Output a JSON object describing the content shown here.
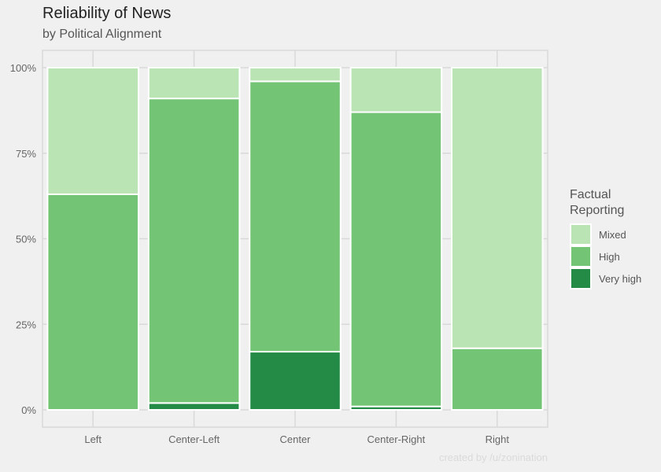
{
  "chart_data": {
    "type": "bar",
    "stacked": true,
    "title": "Reliability of News",
    "subtitle": "by Political Alignment",
    "caption": "created by /u/zonination",
    "categories": [
      "Left",
      "Center-Left",
      "Center",
      "Center-Right",
      "Right"
    ],
    "series": [
      {
        "name": "Very high",
        "color": "#238b45",
        "values": [
          0,
          2,
          17,
          1,
          0
        ]
      },
      {
        "name": "High",
        "color": "#74c476",
        "values": [
          63,
          89,
          79,
          86,
          18
        ]
      },
      {
        "name": "Mixed",
        "color": "#bae4b3",
        "values": [
          37,
          9,
          4,
          13,
          82
        ]
      }
    ],
    "yticks": [
      "0%",
      "25%",
      "50%",
      "75%",
      "100%"
    ],
    "ylim": [
      0,
      100
    ],
    "xlabel": "",
    "ylabel": "",
    "grid": true,
    "legend": {
      "title_lines": [
        "Factual",
        "Reporting"
      ],
      "order": [
        "Mixed",
        "High",
        "Very high"
      ],
      "position": "right"
    }
  }
}
